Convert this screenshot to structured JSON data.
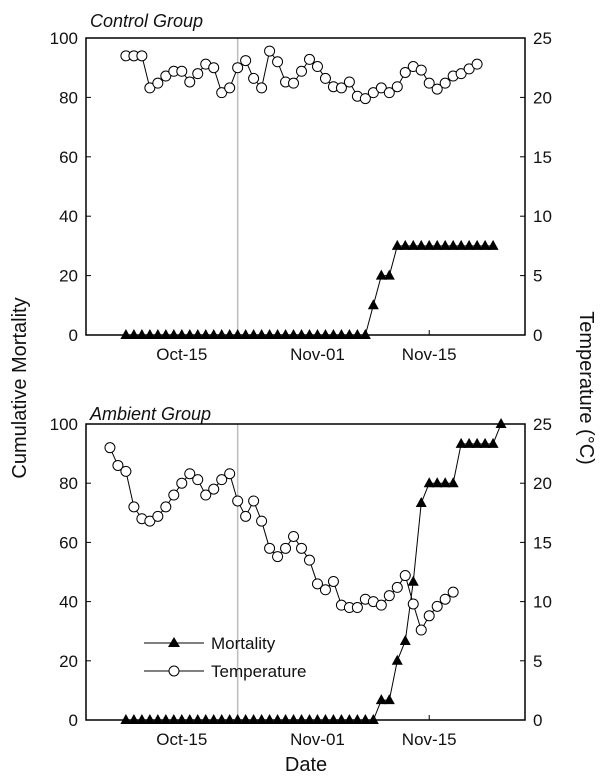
{
  "figure": {
    "ylabel_left": "Cumulative Mortality",
    "ylabel_right": "Temperature (°C)",
    "xlabel": "Date"
  },
  "chart_data": [
    {
      "type": "line",
      "title": "Control Group",
      "x_ticks": [
        "Oct-15",
        "Nov-01",
        "Nov-15"
      ],
      "x_tick_dates": [
        "2011-10-15",
        "2011-11-01",
        "2011-11-15"
      ],
      "xlim": [
        "2011-10-03",
        "2011-11-27"
      ],
      "y_left_lim": [
        0,
        100
      ],
      "y_left_ticks": [
        0,
        20,
        40,
        60,
        80,
        100
      ],
      "y_right_lim": [
        0,
        25
      ],
      "y_right_ticks": [
        0,
        5,
        10,
        15,
        20,
        25
      ],
      "vertical_line_date": "2011-10-22",
      "series": [
        {
          "name": "Mortality",
          "axis": "left",
          "marker": "triangle",
          "start_date": "2011-10-08",
          "values": [
            0,
            0,
            0,
            0,
            0,
            0,
            0,
            0,
            0,
            0,
            0,
            0,
            0,
            0,
            0,
            0,
            0,
            0,
            0,
            0,
            0,
            0,
            0,
            0,
            0,
            0,
            0,
            0,
            0,
            0,
            0,
            10,
            20,
            20,
            30,
            30,
            30,
            30,
            30,
            30,
            30,
            30,
            30,
            30,
            30,
            30,
            30
          ]
        },
        {
          "name": "Temperature",
          "axis": "right",
          "marker": "circle",
          "start_date": "2011-10-08",
          "values": [
            23.5,
            23.5,
            23.5,
            20.8,
            21.2,
            21.8,
            22.2,
            22.2,
            21.3,
            22,
            22.8,
            22.5,
            20.4,
            20.8,
            22.5,
            23.1,
            21.6,
            20.8,
            23.9,
            23,
            21.3,
            21.2,
            22.2,
            23.2,
            22.6,
            21.6,
            20.9,
            20.8,
            21.3,
            20.1,
            19.9,
            20.4,
            20.8,
            20.4,
            20.9,
            22.1,
            22.6,
            22.3,
            21.2,
            20.7,
            21.2,
            21.8,
            22,
            22.4,
            22.8
          ]
        }
      ]
    },
    {
      "type": "line",
      "title": "Ambient Group",
      "x_ticks": [
        "Oct-15",
        "Nov-01",
        "Nov-15"
      ],
      "x_tick_dates": [
        "2011-10-15",
        "2011-11-01",
        "2011-11-15"
      ],
      "xlim": [
        "2011-10-03",
        "2011-11-27"
      ],
      "y_left_lim": [
        0,
        100
      ],
      "y_left_ticks": [
        0,
        20,
        40,
        60,
        80,
        100
      ],
      "y_right_lim": [
        0,
        25
      ],
      "y_right_ticks": [
        0,
        5,
        10,
        15,
        20,
        25
      ],
      "vertical_line_date": "2011-10-22",
      "legend_position": "lower-left",
      "series": [
        {
          "name": "Mortality",
          "axis": "left",
          "marker": "triangle",
          "start_date": "2011-10-08",
          "values": [
            0,
            0,
            0,
            0,
            0,
            0,
            0,
            0,
            0,
            0,
            0,
            0,
            0,
            0,
            0,
            0,
            0,
            0,
            0,
            0,
            0,
            0,
            0,
            0,
            0,
            0,
            0,
            0,
            0,
            0,
            0,
            0,
            6.7,
            6.7,
            20,
            26.7,
            46.7,
            73.3,
            80,
            80,
            80,
            80,
            93.3,
            93.3,
            93.3,
            93.3,
            93.3,
            100
          ]
        },
        {
          "name": "Temperature",
          "axis": "right",
          "marker": "circle",
          "start_date": "2011-10-06",
          "values": [
            23,
            21.5,
            21,
            18,
            17,
            16.8,
            17.2,
            18,
            19,
            20,
            20.8,
            20.3,
            19,
            19.5,
            20.3,
            20.8,
            18.5,
            17.2,
            18.5,
            16.8,
            14.5,
            13.8,
            14.5,
            15.5,
            14.5,
            13.5,
            11.5,
            11,
            11.7,
            9.7,
            9.5,
            9.5,
            10.2,
            10,
            9.7,
            10.5,
            11.2,
            12.2,
            9.8,
            7.6,
            8.8,
            9.6,
            10.2,
            10.8
          ]
        }
      ]
    }
  ]
}
